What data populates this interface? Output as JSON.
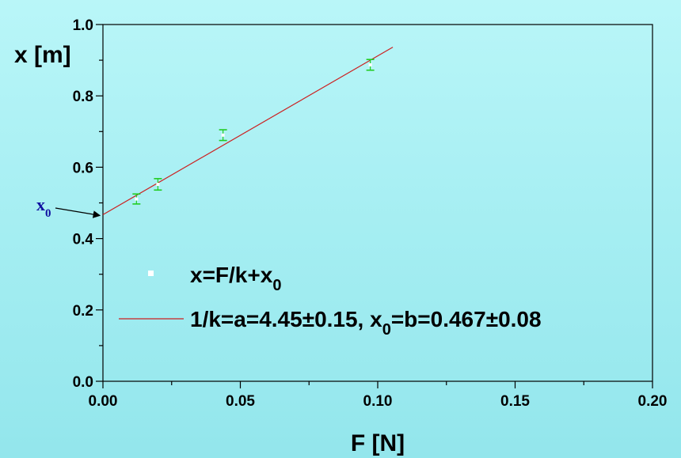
{
  "chart_data": {
    "type": "scatter",
    "xlabel": "F [N]",
    "ylabel": "x [m]",
    "xlim": [
      0.0,
      0.2
    ],
    "ylim": [
      0.0,
      1.0
    ],
    "x_ticks": [
      "0.00",
      "0.05",
      "0.10",
      "0.15",
      "0.20"
    ],
    "y_ticks": [
      "0.0",
      "0.2",
      "0.4",
      "0.6",
      "0.8",
      "1.0"
    ],
    "x_tick_values": [
      0.0,
      0.05,
      0.1,
      0.15,
      0.2
    ],
    "y_tick_values": [
      0.0,
      0.2,
      0.4,
      0.6,
      0.8,
      1.0
    ],
    "grid": false,
    "series": [
      {
        "name": "x=F/k+x0",
        "kind": "error-bars",
        "color": "#22cc22",
        "points": [
          {
            "x": 0.0122,
            "y": 0.511,
            "err": 0.014
          },
          {
            "x": 0.02,
            "y": 0.552,
            "err": 0.016
          },
          {
            "x": 0.0437,
            "y": 0.69,
            "err": 0.015
          },
          {
            "x": 0.0973,
            "y": 0.887,
            "err": 0.015
          }
        ]
      },
      {
        "name": "1/k=a=4.45±0.15, x0=b=0.467±0.08",
        "kind": "fit-line",
        "color": "#cc2020",
        "slope": 4.45,
        "intercept": 0.467,
        "x_range": [
          0.0,
          0.1055
        ]
      }
    ],
    "legend": {
      "placement": "bottom-right",
      "entries": [
        {
          "main": "x=F/k+x",
          "sub": "0",
          "tail": ""
        },
        {
          "main": "1/k=a=4.45±0.15, x",
          "sub": "0",
          "tail": "=b=0.467±0.08"
        }
      ]
    },
    "annotation": {
      "main": "x",
      "sub": "0",
      "points_to_x": 0.0,
      "points_to_y": 0.467,
      "color": "#1010a0"
    }
  }
}
